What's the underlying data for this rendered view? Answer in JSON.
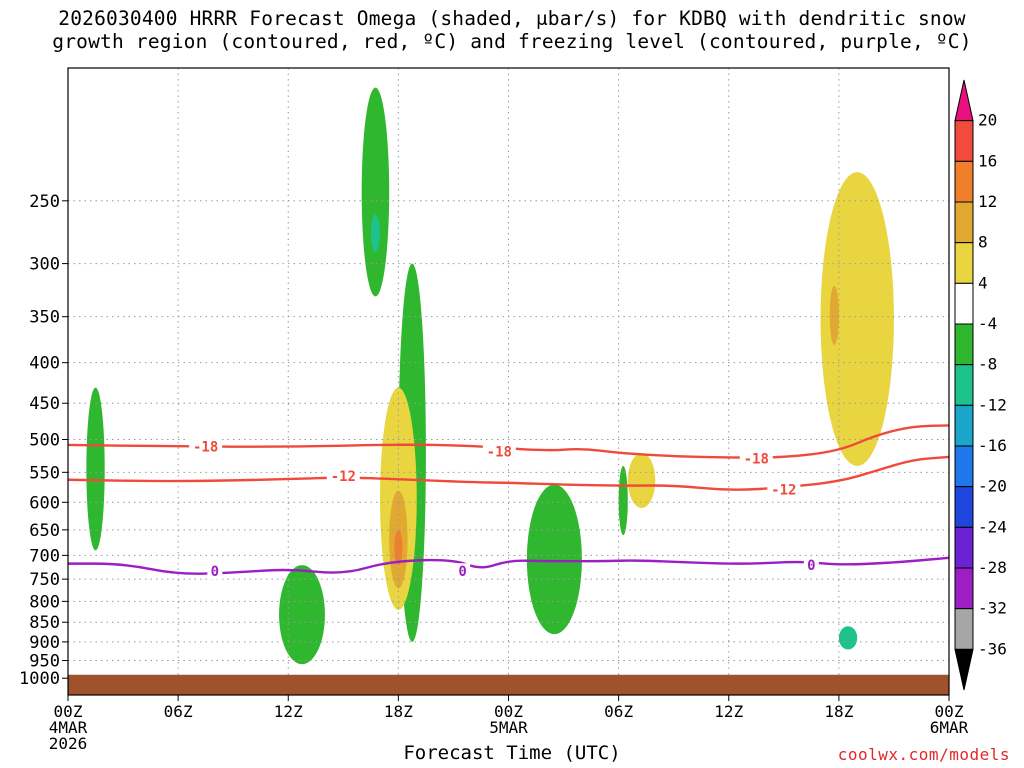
{
  "title_line1": "2026030400 HRRR Forecast Omega (shaded, μbar/s) for KDBQ with dendritic snow",
  "title_line2": "growth region (contoured, red, ºC) and freezing level (contoured, purple, ºC)",
  "credit": "coolwx.com/models",
  "colors": {
    "ground": "#a0522d",
    "contour_red": "#f04a3c",
    "contour_purple": "#9b1fc2",
    "grid": "#9a9a9a"
  },
  "chart_data": {
    "type": "heatmap",
    "xlabel": "Forecast Time (UTC)",
    "ylabel": "",
    "x_range_hours": [
      0,
      48
    ],
    "y_range_mb": [
      1050,
      170
    ],
    "y_scale": "log-pressure",
    "grid": true,
    "y_ticks": [
      "250",
      "300",
      "350",
      "400",
      "450",
      "500",
      "550",
      "600",
      "650",
      "700",
      "750",
      "800",
      "850",
      "900",
      "950",
      "1000"
    ],
    "x_ticks": [
      {
        "hour": 0,
        "label": "00Z",
        "sub1": "4MAR",
        "sub2": "2026"
      },
      {
        "hour": 6,
        "label": "06Z",
        "sub1": "",
        "sub2": ""
      },
      {
        "hour": 12,
        "label": "12Z",
        "sub1": "",
        "sub2": ""
      },
      {
        "hour": 18,
        "label": "18Z",
        "sub1": "",
        "sub2": ""
      },
      {
        "hour": 24,
        "label": "00Z",
        "sub1": "5MAR",
        "sub2": ""
      },
      {
        "hour": 30,
        "label": "06Z",
        "sub1": "",
        "sub2": ""
      },
      {
        "hour": 36,
        "label": "12Z",
        "sub1": "",
        "sub2": ""
      },
      {
        "hour": 42,
        "label": "18Z",
        "sub1": "",
        "sub2": ""
      },
      {
        "hour": 48,
        "label": "00Z",
        "sub1": "6MAR",
        "sub2": ""
      }
    ],
    "colorbar": {
      "levels": [
        "20",
        "16",
        "12",
        "8",
        "4",
        "-4",
        "-8",
        "-12",
        "-16",
        "-20",
        "-24",
        "-28",
        "-32",
        "-36"
      ],
      "colors": [
        "#e8117f",
        "#f24a3d",
        "#ef7f2a",
        "#e1a832",
        "#e8d540",
        "#ffffff",
        "#2fb82f",
        "#1dc28c",
        "#1aa5c9",
        "#1f78ea",
        "#2046e0",
        "#6a22d2",
        "#9b1fc2",
        "#a6a6a6",
        "#000000"
      ]
    },
    "contours": [
      {
        "name": "-18",
        "color": "#f04a3c",
        "points": [
          [
            0,
            508
          ],
          [
            6,
            510
          ],
          [
            12,
            511
          ],
          [
            18,
            507
          ],
          [
            22,
            509
          ],
          [
            26,
            517
          ],
          [
            28,
            513
          ],
          [
            30,
            520
          ],
          [
            33,
            525
          ],
          [
            36,
            527
          ],
          [
            39,
            527
          ],
          [
            42,
            517
          ],
          [
            44,
            494
          ],
          [
            46,
            481
          ],
          [
            48,
            480
          ]
        ],
        "labels": [
          [
            7.5,
            510
          ],
          [
            23.5,
            518
          ],
          [
            37.5,
            528
          ]
        ]
      },
      {
        "name": "-12",
        "color": "#f04a3c",
        "points": [
          [
            0,
            562
          ],
          [
            6,
            565
          ],
          [
            12,
            561
          ],
          [
            15,
            558
          ],
          [
            18,
            561
          ],
          [
            22,
            566
          ],
          [
            24,
            567
          ],
          [
            27,
            570
          ],
          [
            30,
            572
          ],
          [
            33,
            571
          ],
          [
            36,
            580
          ],
          [
            39,
            575
          ],
          [
            42,
            565
          ],
          [
            44,
            548
          ],
          [
            46,
            530
          ],
          [
            48,
            526
          ]
        ],
        "labels": [
          [
            15,
            556
          ],
          [
            39,
            578
          ]
        ]
      },
      {
        "name": "0",
        "color": "#9b1fc2",
        "points": [
          [
            0,
            717
          ],
          [
            3,
            717
          ],
          [
            6,
            740
          ],
          [
            9,
            736
          ],
          [
            12,
            728
          ],
          [
            15,
            740
          ],
          [
            17.5,
            712
          ],
          [
            21,
            708
          ],
          [
            22.5,
            730
          ],
          [
            24,
            710
          ],
          [
            26,
            712
          ],
          [
            29,
            712
          ],
          [
            31,
            710
          ],
          [
            34,
            715
          ],
          [
            37,
            718
          ],
          [
            40,
            712
          ],
          [
            42,
            720
          ],
          [
            45,
            715
          ],
          [
            48,
            705
          ]
        ],
        "labels": [
          [
            8,
            733
          ],
          [
            21.5,
            733
          ],
          [
            40.5,
            720
          ]
        ]
      }
    ],
    "shaded_regions": [
      {
        "level": "-4",
        "hours": [
          16,
          17.5
        ],
        "pressure": [
          180,
          330
        ],
        "note": "upper updraft column"
      },
      {
        "level": "-8",
        "hours": [
          16.5,
          17
        ],
        "pressure": [
          260,
          290
        ]
      },
      {
        "level": "-4",
        "hours": [
          18,
          19.5
        ],
        "pressure": [
          300,
          900
        ]
      },
      {
        "level": "4",
        "hours": [
          17,
          19
        ],
        "pressure": [
          430,
          820
        ]
      },
      {
        "level": "8",
        "hours": [
          17.5,
          18.5
        ],
        "pressure": [
          580,
          770
        ]
      },
      {
        "level": "12",
        "hours": [
          17.8,
          18.2
        ],
        "pressure": [
          650,
          720
        ]
      },
      {
        "level": "4",
        "hours": [
          41,
          45
        ],
        "pressure": [
          230,
          540
        ]
      },
      {
        "level": "8",
        "hours": [
          41.5,
          42
        ],
        "pressure": [
          320,
          380
        ]
      },
      {
        "level": "4",
        "hours": [
          30.5,
          32
        ],
        "pressure": [
          520,
          610
        ]
      },
      {
        "level": "-4",
        "hours": [
          30,
          30.5
        ],
        "pressure": [
          540,
          660
        ]
      },
      {
        "level": "-4",
        "hours": [
          1,
          2
        ],
        "pressure": [
          430,
          690
        ]
      },
      {
        "level": "-4",
        "hours": [
          11.5,
          14
        ],
        "pressure": [
          720,
          960
        ]
      },
      {
        "level": "-4",
        "hours": [
          25,
          28
        ],
        "pressure": [
          570,
          880
        ]
      },
      {
        "level": "-8",
        "hours": [
          42,
          43
        ],
        "pressure": [
          860,
          920
        ]
      }
    ]
  }
}
